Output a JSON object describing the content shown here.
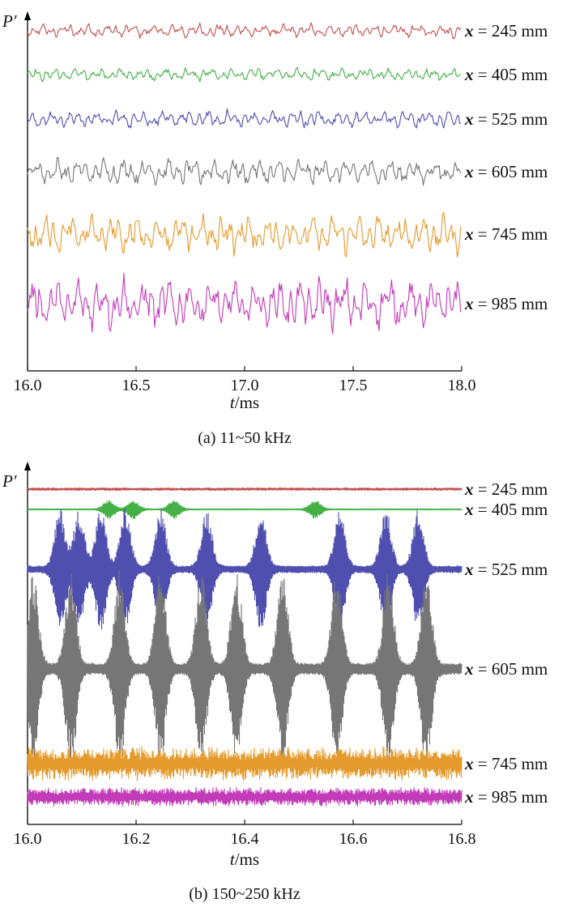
{
  "colors": {
    "x245": "#c0504d",
    "x405": "#44b045",
    "x525": "#4f4fb0",
    "x605": "#767676",
    "x745": "#e49a2c",
    "x985": "#c23bb8"
  },
  "chart_data": [
    {
      "type": "line",
      "caption": "(a) 11~50 kHz",
      "ylabel": "P′",
      "xlabel": {
        "var": "t",
        "unit": "/ms"
      },
      "xlim": [
        16.0,
        18.0
      ],
      "xticks": [
        "16.0",
        "16.5",
        "17.0",
        "17.5",
        "18.0"
      ],
      "grid": false,
      "series": [
        {
          "name": "x = 245 mm",
          "prefix": "x",
          "rest": " = 245 mm",
          "color": "#c0504d",
          "relative_amplitude": 0.55,
          "character": "broadband low-frequency fluctuation"
        },
        {
          "name": "x = 405 mm",
          "prefix": "x",
          "rest": " = 405 mm",
          "color": "#44b045",
          "relative_amplitude": 0.5,
          "character": "broadband low-frequency fluctuation"
        },
        {
          "name": "x = 525 mm",
          "prefix": "x",
          "rest": " = 525 mm",
          "color": "#4f4fb0",
          "relative_amplitude": 0.7,
          "character": "broadband low-frequency fluctuation"
        },
        {
          "name": "x = 605 mm",
          "prefix": "x",
          "rest": " = 605 mm",
          "color": "#767676",
          "relative_amplitude": 1.0,
          "character": "broadband low-frequency fluctuation"
        },
        {
          "name": "x = 745 mm",
          "prefix": "x",
          "rest": " = 745 mm",
          "color": "#e49a2c",
          "relative_amplitude": 1.5,
          "character": "broadband low-frequency fluctuation"
        },
        {
          "name": "x = 985 mm",
          "prefix": "x",
          "rest": " = 985 mm",
          "color": "#c23bb8",
          "relative_amplitude": 2.0,
          "character": "broadband low-frequency fluctuation"
        }
      ]
    },
    {
      "type": "line",
      "caption": "(b) 150~250 kHz",
      "ylabel": "P′",
      "xlabel": {
        "var": "t",
        "unit": "/ms"
      },
      "xlim": [
        16.0,
        16.8
      ],
      "xticks": [
        "16.0",
        "16.2",
        "16.4",
        "16.6",
        "16.8"
      ],
      "grid": false,
      "series": [
        {
          "name": "x = 245 mm",
          "prefix": "x",
          "rest": " = 245 mm",
          "color": "#c0504d",
          "relative_amplitude": 0.03,
          "character": "near-flat high-frequency trace"
        },
        {
          "name": "x = 405 mm",
          "prefix": "x",
          "rest": " = 405 mm",
          "color": "#44b045",
          "relative_amplitude": 0.15,
          "character": "low-level high-frequency trace with small packets",
          "packet_centers_ms": [
            16.15,
            16.195,
            16.27,
            16.53
          ]
        },
        {
          "name": "x = 525 mm",
          "prefix": "x",
          "rest": " = 525 mm",
          "color": "#4f4fb0",
          "relative_amplitude": 1.0,
          "character": "intermittent wave packets",
          "packet_centers_ms": [
            16.06,
            16.095,
            16.135,
            16.18,
            16.245,
            16.33,
            16.43,
            16.575,
            16.66,
            16.72
          ]
        },
        {
          "name": "x = 605 mm",
          "prefix": "x",
          "rest": " = 605 mm",
          "color": "#767676",
          "relative_amplitude": 1.6,
          "character": "large intermittent wave packets",
          "packet_centers_ms": [
            16.01,
            16.08,
            16.17,
            16.245,
            16.32,
            16.385,
            16.47,
            16.57,
            16.665,
            16.735
          ]
        },
        {
          "name": "x = 745 mm",
          "prefix": "x",
          "rest": " = 745 mm",
          "color": "#e49a2c",
          "relative_amplitude": 0.35,
          "character": "broadband high-frequency noise"
        },
        {
          "name": "x = 985 mm",
          "prefix": "x",
          "rest": " = 985 mm",
          "color": "#c23bb8",
          "relative_amplitude": 0.2,
          "character": "broadband high-frequency noise"
        }
      ]
    }
  ]
}
